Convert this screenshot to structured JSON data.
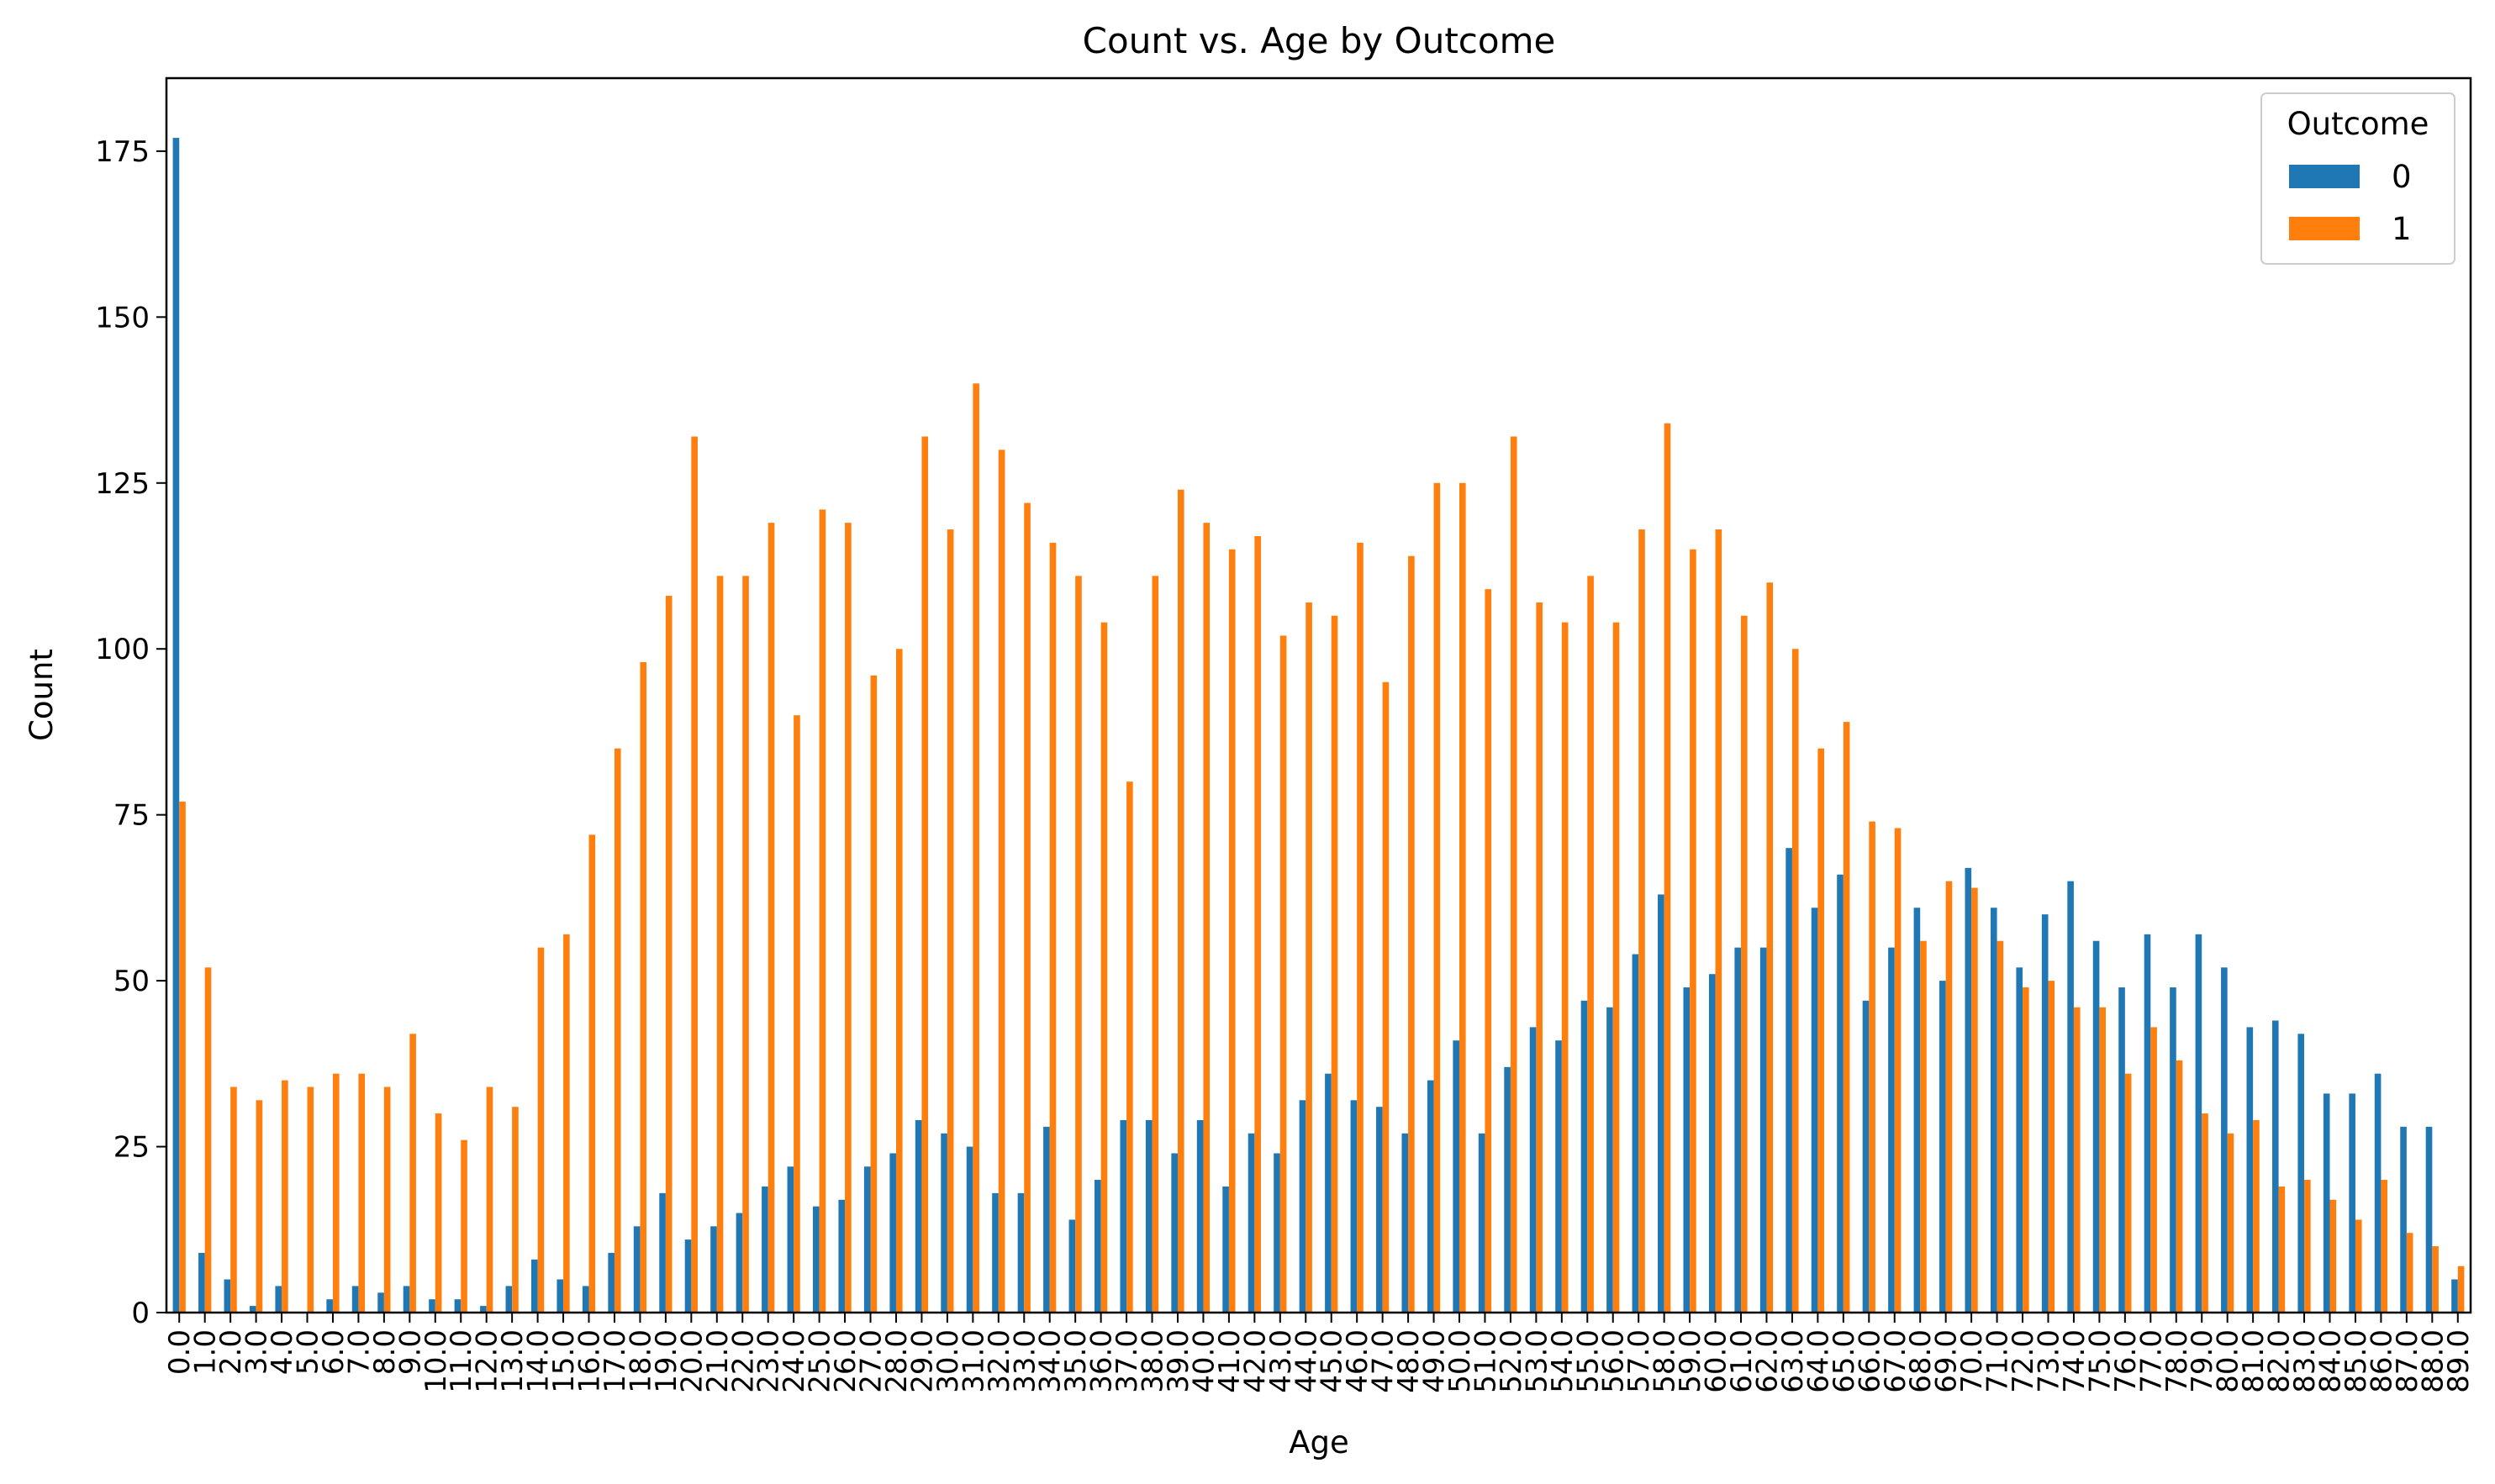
{
  "chart_data": {
    "type": "bar",
    "title": "Count vs. Age by Outcome",
    "xlabel": "Age",
    "ylabel": "Count",
    "ylim": [
      0,
      186
    ],
    "yticks": [
      0,
      25,
      50,
      75,
      100,
      125,
      150,
      175
    ],
    "grid": false,
    "legend": {
      "title": "Outcome",
      "position": "top-right"
    },
    "categories": [
      "0.0",
      "1.0",
      "2.0",
      "3.0",
      "4.0",
      "5.0",
      "6.0",
      "7.0",
      "8.0",
      "9.0",
      "10.0",
      "11.0",
      "12.0",
      "13.0",
      "14.0",
      "15.0",
      "16.0",
      "17.0",
      "18.0",
      "19.0",
      "20.0",
      "21.0",
      "22.0",
      "23.0",
      "24.0",
      "25.0",
      "26.0",
      "27.0",
      "28.0",
      "29.0",
      "30.0",
      "31.0",
      "32.0",
      "33.0",
      "34.0",
      "35.0",
      "36.0",
      "37.0",
      "38.0",
      "39.0",
      "40.0",
      "41.0",
      "42.0",
      "43.0",
      "44.0",
      "45.0",
      "46.0",
      "47.0",
      "48.0",
      "49.0",
      "50.0",
      "51.0",
      "52.0",
      "53.0",
      "54.0",
      "55.0",
      "56.0",
      "57.0",
      "58.0",
      "59.0",
      "60.0",
      "61.0",
      "62.0",
      "63.0",
      "64.0",
      "65.0",
      "66.0",
      "67.0",
      "68.0",
      "69.0",
      "70.0",
      "71.0",
      "72.0",
      "73.0",
      "74.0",
      "75.0",
      "76.0",
      "77.0",
      "78.0",
      "79.0",
      "80.0",
      "81.0",
      "82.0",
      "83.0",
      "84.0",
      "85.0",
      "86.0",
      "87.0",
      "88.0",
      "89.0"
    ],
    "series": [
      {
        "name": "0",
        "color": "#1f77b4",
        "values": [
          177,
          9,
          5,
          1,
          4,
          0,
          2,
          4,
          3,
          4,
          2,
          2,
          1,
          4,
          8,
          5,
          4,
          9,
          13,
          18,
          11,
          13,
          15,
          19,
          22,
          16,
          17,
          22,
          24,
          29,
          27,
          25,
          18,
          18,
          28,
          14,
          20,
          29,
          29,
          24,
          29,
          19,
          27,
          24,
          32,
          36,
          32,
          31,
          27,
          35,
          41,
          27,
          37,
          43,
          41,
          47,
          46,
          54,
          63,
          49,
          51,
          55,
          55,
          70,
          61,
          66,
          47,
          55,
          61,
          50,
          67,
          61,
          52,
          60,
          65,
          56,
          49,
          57,
          49,
          57,
          52,
          43,
          44,
          42,
          33,
          33,
          36,
          28,
          28,
          5
        ]
      },
      {
        "name": "1",
        "color": "#ff7f0e",
        "values": [
          77,
          52,
          34,
          32,
          35,
          34,
          36,
          36,
          34,
          42,
          30,
          26,
          34,
          31,
          55,
          57,
          72,
          85,
          98,
          108,
          132,
          111,
          111,
          119,
          90,
          121,
          119,
          96,
          100,
          132,
          118,
          140,
          130,
          122,
          116,
          111,
          104,
          80,
          111,
          124,
          119,
          115,
          117,
          102,
          107,
          105,
          116,
          95,
          114,
          125,
          125,
          109,
          132,
          107,
          104,
          111,
          104,
          118,
          134,
          115,
          118,
          105,
          110,
          100,
          85,
          89,
          74,
          73,
          56,
          65,
          64,
          56,
          49,
          50,
          46,
          46,
          36,
          43,
          38,
          30,
          27,
          29,
          19,
          20,
          17,
          14,
          20,
          12,
          10,
          7
        ]
      }
    ]
  }
}
